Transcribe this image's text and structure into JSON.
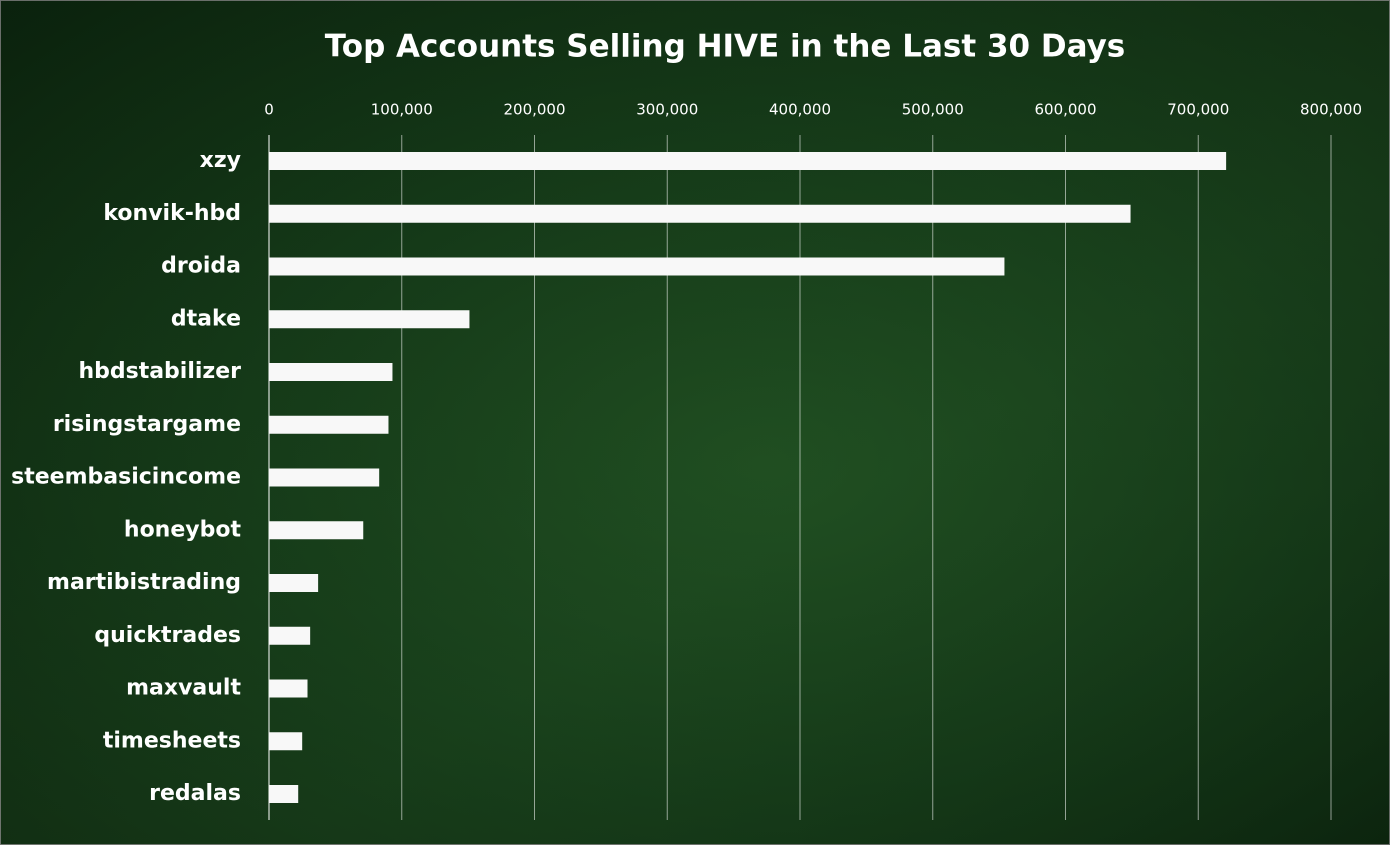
{
  "chart_data": {
    "type": "bar",
    "orientation": "horizontal",
    "title": "Top Accounts Selling HIVE in the Last 30 Days",
    "categories": [
      "xzy",
      "konvik-hbd",
      "droida",
      "dtake",
      "hbdstabilizer",
      "risingstargame",
      "steembasicincome",
      "honeybot",
      "martibistrading",
      "quicktrades",
      "maxvault",
      "timesheets",
      "redalas"
    ],
    "values": [
      721000,
      649000,
      554000,
      151000,
      93000,
      90000,
      83000,
      71000,
      37000,
      31000,
      29000,
      25000,
      22000
    ],
    "color": "#f8f8f8",
    "xlim": [
      0,
      800000
    ],
    "xticks": [
      0,
      {
        "value": 100000,
        "label": "100,000"
      },
      {
        "value": 200000,
        "label": "200,000"
      },
      {
        "value": 300000,
        "label": "300,000"
      },
      {
        "value": 400000,
        "label": "400,000"
      },
      {
        "value": 500000,
        "label": "500,000"
      },
      {
        "value": 600000,
        "label": "600,000"
      },
      {
        "value": 700000,
        "label": "700,000"
      },
      {
        "value": 800000,
        "label": "800,000"
      }
    ],
    "grid": true
  }
}
